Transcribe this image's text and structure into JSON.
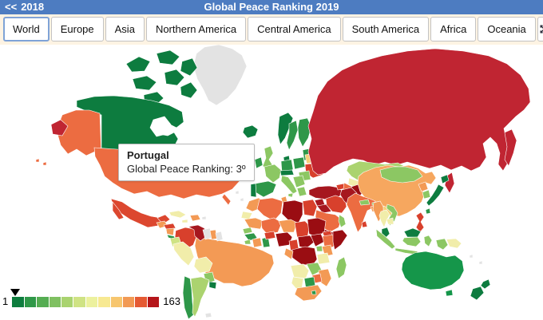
{
  "theme": {
    "header_bg": "#4d7cc1",
    "header_text": "#ffffff",
    "tab_strip_bg": "#fdf3e3",
    "tab_border": "#c3c3c3",
    "tab_selected_border": "#7fa3d7",
    "tooltip_border": "#b9b9b9",
    "ocean": "#ffffff"
  },
  "header": {
    "back_arrows": "<<",
    "previous_year": "2018",
    "title": "Global Peace Ranking 2019"
  },
  "nav": {
    "tabs": [
      {
        "label": "World",
        "selected": true
      },
      {
        "label": "Europe",
        "selected": false
      },
      {
        "label": "Asia",
        "selected": false
      },
      {
        "label": "Northern America",
        "selected": false
      },
      {
        "label": "Central America",
        "selected": false
      },
      {
        "label": "South America",
        "selected": false
      },
      {
        "label": "Africa",
        "selected": false
      },
      {
        "label": "Oceania",
        "selected": false
      }
    ],
    "fullscreen_icon": "expand-arrows"
  },
  "tooltip": {
    "country": "Portugal",
    "line": "Global Peace Ranking: 3º"
  },
  "legend": {
    "min": "1",
    "max": "163",
    "marker_color": "#000000",
    "colors": [
      "#0e7d3e",
      "#2f9848",
      "#55ad52",
      "#7fc061",
      "#a9d36f",
      "#cfe384",
      "#ecf19e",
      "#f7e992",
      "#f7c66e",
      "#f29a54",
      "#e55a33",
      "#b5161a"
    ]
  },
  "chart_data": {
    "type": "choropleth",
    "title": "Global Peace Ranking 2019",
    "scale": {
      "min": 1,
      "max": 163
    },
    "legend_position": "bottom-left",
    "highlight": {
      "country": "Portugal",
      "rank": 3,
      "rank_label": "3º"
    },
    "encoding": "green = low rank (more peaceful), dark red = high rank (less peaceful), gray = no data",
    "no_data_color": "#e3e3e3",
    "regions": {
      "greenland": "#e3e3e3",
      "canada": "#0d7c3f",
      "alaska": "#ec6c41",
      "usa": "#ec6c41",
      "aleutians": "#ec6c41",
      "mexico": "#dc472f",
      "guatemala": "#f39a55",
      "honduras": "#d8402c",
      "nicaragua": "#f39a55",
      "costa-rica": "#2e9749",
      "panama": "#8cc763",
      "cuba": "#f1edaa",
      "jamaica": "#f1edaa",
      "hispaniola": "#f39a55",
      "puerto-rico": "#e3e3e3",
      "colombia": "#d8402c",
      "venezuela": "#a6171f",
      "guyana": "#e3e3e3",
      "suriname": "#f39a55",
      "french-guiana": "#e3e3e3",
      "ecuador": "#cfe384",
      "peru": "#f1edaa",
      "brazil": "#f39a55",
      "bolivia": "#f1edaa",
      "paraguay": "#8cc763",
      "chile": "#2e9749",
      "argentina": "#abd36f",
      "uruguay": "#0d7c3f",
      "falklands": "#e3e3e3",
      "iceland": "#0d7c3f",
      "ireland": "#2e9749",
      "uk": "#8cc763",
      "norway": "#0d7c3f",
      "sweden": "#2e9749",
      "finland": "#2e9749",
      "denmark": "#0d7c3f",
      "baltics": "#2e9749",
      "germany": "#2e9749",
      "poland": "#2e9749",
      "belarus": "#f6cf78",
      "ukraine": "#d8402c",
      "romania": "#8cc763",
      "france": "#8cc763",
      "spain": "#2e9749",
      "portugal": "#0d7c3f",
      "italy": "#8cc763",
      "central-europe": "#0d7c3f",
      "balkans": "#8cc763",
      "greece": "#8cc763",
      "russia": "#c02532",
      "turkey": "#a6171f",
      "syria": "#a6171f",
      "iraq": "#a6171f",
      "iran": "#d8402c",
      "caucasus": "#d8402c",
      "saudi-arabia": "#ec6c41",
      "yemen": "#a6171f",
      "oman": "#8cc763",
      "kazakhstan": "#abd36f",
      "uzbekistan": "#f1edaa",
      "turkmenistan": "#ec6c41",
      "afghanistan": "#9a0d12",
      "pakistan": "#a6171f",
      "india": "#ec6c41",
      "nepal": "#8cc763",
      "bhutan": "#8cc763",
      "bangladesh": "#f39a55",
      "sri-lanka": "#d8402c",
      "myanmar": "#f39a55",
      "thailand": "#f1edaa",
      "laos": "#f6cf78",
      "vietnam": "#8cc763",
      "cambodia": "#f1edaa",
      "china": "#f6a75f",
      "mongolia": "#8cc763",
      "north-korea": "#f39a55",
      "south-korea": "#8cc763",
      "japan": "#0d7c3f",
      "taiwan": "#2e9749",
      "philippines": "#d8402c",
      "malaysia": "#0d7c3f",
      "indonesia": "#8cc763",
      "papua-new-guinea": "#f1edaa",
      "australia": "#15964a",
      "new-zealand": "#0d7c3f",
      "pacific-islands": "#e3e3e3",
      "atlantic-islands": "#e3e3e3",
      "morocco": "#f39a55",
      "western-sahara": "#f1edaa",
      "algeria": "#ec6c41",
      "tunisia": "#f39a55",
      "libya": "#9a0d12",
      "egypt": "#d8402c",
      "mauritania": "#f39a55",
      "mali": "#ec6c41",
      "niger": "#f39a55",
      "chad": "#d8402c",
      "sudan": "#9a0d12",
      "eritrea": "#d8402c",
      "senegal": "#8cc763",
      "guinea": "#2e9749",
      "sierra-leone": "#8cc763",
      "ivory-coast": "#f39a55",
      "ghana": "#2e9749",
      "burkina-faso": "#d8402c",
      "nigeria": "#9a0d12",
      "cameroon": "#d8402c",
      "central-african-republic": "#9a0d12",
      "south-sudan": "#9a0d12",
      "ethiopia": "#ec6c41",
      "somalia": "#9a0d12",
      "kenya": "#f39a55",
      "uganda": "#8cc763",
      "drc": "#9a0d12",
      "congo": "#f39a55",
      "tanzania": "#f1edaa",
      "angola": "#f1edaa",
      "zambia": "#8cc763",
      "mozambique": "#f39a55",
      "zimbabwe": "#ec6c41",
      "botswana": "#2e9749",
      "namibia": "#f1edaa",
      "south-africa": "#f39a55",
      "lesotho": "#2e9749",
      "madagascar": "#8cc763"
    }
  }
}
